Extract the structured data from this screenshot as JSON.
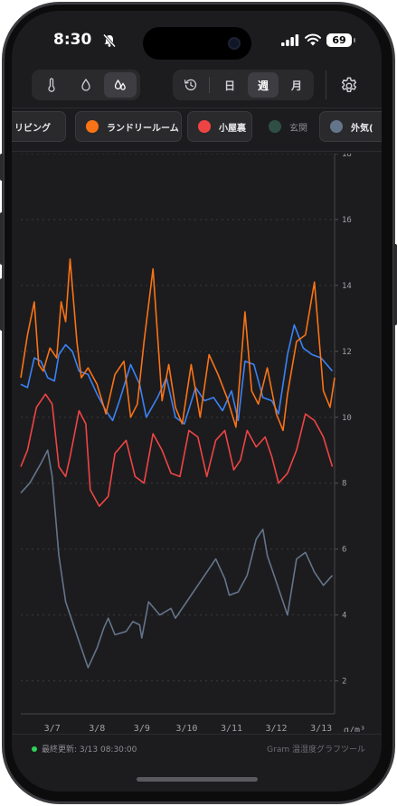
{
  "status_bar": {
    "time": "8:30",
    "battery": "69"
  },
  "toolbar": {
    "periods": [
      {
        "label": "日",
        "active": false
      },
      {
        "label": "週",
        "active": true
      },
      {
        "label": "月",
        "active": false
      }
    ],
    "active_metric": "absolute-humidity"
  },
  "rooms": [
    {
      "label": "リビング",
      "color": "#3b82f6",
      "active": true
    },
    {
      "label": "ランドリールーム",
      "color": "#f97316",
      "active": true
    },
    {
      "label": "小屋裏",
      "color": "#ef4444",
      "active": true
    },
    {
      "label": "玄関",
      "color": "#2f4f45",
      "active": false
    },
    {
      "label": "外気(",
      "color": "#64748b",
      "active": true
    }
  ],
  "chart_data": {
    "type": "line",
    "x_tick_labels": [
      "3/7",
      "3/8",
      "3/9",
      "3/10",
      "3/11",
      "3/12",
      "3/13"
    ],
    "y_tick_labels": [
      "2",
      "4",
      "6",
      "8",
      "10",
      "12",
      "14",
      "16",
      "18"
    ],
    "y_unit": "g/m³",
    "ylim": [
      1,
      18
    ],
    "xlim": [
      0,
      7
    ],
    "grid": "horizontal-dotted",
    "y_axis_position": "right",
    "series": [
      {
        "name": "外気(",
        "color": "#64748b",
        "x": [
          0,
          0.2,
          0.45,
          0.6,
          0.7,
          0.85,
          1.0,
          1.15,
          1.3,
          1.5,
          1.7,
          1.85,
          1.95,
          2.1,
          2.35,
          2.5,
          2.65,
          2.7,
          2.85,
          3.1,
          3.35,
          3.45,
          3.7,
          3.9,
          4.1,
          4.35,
          4.55,
          4.65,
          4.85,
          5.05,
          5.25,
          5.4,
          5.5,
          5.65,
          5.8,
          5.95,
          6.15,
          6.35,
          6.55,
          6.75,
          6.95
        ],
        "y": [
          7.7,
          8.0,
          8.6,
          9.0,
          8.2,
          5.8,
          4.4,
          3.8,
          3.2,
          2.4,
          3.0,
          3.6,
          3.9,
          3.4,
          3.5,
          3.8,
          3.7,
          3.3,
          4.4,
          4.0,
          4.2,
          3.9,
          4.4,
          4.8,
          5.2,
          5.7,
          5.1,
          4.6,
          4.7,
          5.2,
          6.3,
          6.6,
          5.8,
          5.2,
          4.6,
          4.0,
          5.7,
          5.9,
          5.3,
          4.9,
          5.2
        ]
      },
      {
        "name": "小屋裏",
        "color": "#ef4444",
        "x": [
          0,
          0.15,
          0.35,
          0.55,
          0.7,
          0.85,
          1.0,
          1.1,
          1.3,
          1.45,
          1.55,
          1.75,
          1.95,
          2.1,
          2.35,
          2.55,
          2.75,
          2.95,
          3.15,
          3.35,
          3.55,
          3.75,
          3.95,
          4.15,
          4.35,
          4.55,
          4.75,
          4.9,
          5.05,
          5.25,
          5.45,
          5.6,
          5.75,
          5.95,
          6.15,
          6.35,
          6.55,
          6.75,
          6.95
        ],
        "y": [
          8.5,
          9.0,
          10.3,
          10.7,
          10.4,
          8.5,
          8.2,
          8.8,
          10.2,
          9.8,
          7.8,
          7.3,
          7.6,
          8.9,
          9.3,
          8.2,
          8.0,
          9.5,
          9.0,
          8.3,
          8.2,
          9.6,
          9.4,
          8.2,
          9.3,
          9.6,
          8.4,
          8.7,
          9.6,
          9.1,
          9.4,
          8.8,
          8.0,
          8.3,
          9.0,
          10.1,
          9.9,
          9.4,
          8.5
        ]
      },
      {
        "name": "リビング",
        "color": "#3b82f6",
        "x": [
          0,
          0.15,
          0.3,
          0.45,
          0.6,
          0.75,
          0.85,
          1.0,
          1.15,
          1.3,
          1.5,
          1.7,
          1.9,
          2.05,
          2.2,
          2.45,
          2.65,
          2.8,
          3.05,
          3.25,
          3.45,
          3.65,
          3.9,
          4.1,
          4.3,
          4.5,
          4.7,
          4.85,
          5.0,
          5.2,
          5.4,
          5.6,
          5.75,
          5.95,
          6.1,
          6.3,
          6.5,
          6.7,
          6.95
        ],
        "y": [
          11.0,
          10.9,
          11.8,
          11.7,
          11.2,
          11.1,
          11.9,
          12.2,
          12.0,
          11.4,
          11.3,
          10.7,
          10.2,
          9.9,
          10.5,
          11.6,
          11.0,
          10.0,
          10.6,
          11.2,
          10.0,
          9.8,
          10.9,
          10.5,
          10.6,
          10.2,
          10.8,
          9.9,
          11.7,
          11.6,
          10.6,
          10.5,
          10.1,
          11.9,
          12.8,
          12.1,
          11.9,
          11.8,
          11.4
        ]
      },
      {
        "name": "ランドリールーム",
        "color": "#f97316",
        "x": [
          0,
          0.15,
          0.3,
          0.4,
          0.5,
          0.65,
          0.8,
          0.9,
          1.0,
          1.1,
          1.25,
          1.35,
          1.5,
          1.7,
          1.9,
          2.1,
          2.3,
          2.45,
          2.6,
          2.75,
          2.95,
          3.15,
          3.3,
          3.45,
          3.6,
          3.8,
          4.0,
          4.2,
          4.4,
          4.6,
          4.8,
          5.0,
          5.15,
          5.3,
          5.5,
          5.7,
          5.85,
          5.95,
          6.15,
          6.35,
          6.55,
          6.75,
          6.9,
          7.0
        ],
        "y": [
          11.2,
          12.5,
          13.5,
          11.6,
          11.4,
          12.1,
          11.8,
          13.5,
          12.9,
          14.8,
          12.3,
          11.2,
          11.5,
          11.0,
          10.1,
          11.3,
          11.7,
          10.0,
          10.4,
          12.3,
          14.5,
          10.5,
          11.6,
          10.3,
          9.8,
          11.6,
          10.0,
          11.9,
          11.3,
          10.6,
          9.7,
          13.2,
          10.8,
          10.4,
          11.5,
          10.1,
          9.6,
          10.7,
          12.3,
          12.5,
          14.1,
          10.8,
          10.3,
          11.2
        ]
      }
    ]
  },
  "footer": {
    "updated": "最終更新: 3/13 08:30:00",
    "credit": "Gram 温湿度グラフツール"
  }
}
